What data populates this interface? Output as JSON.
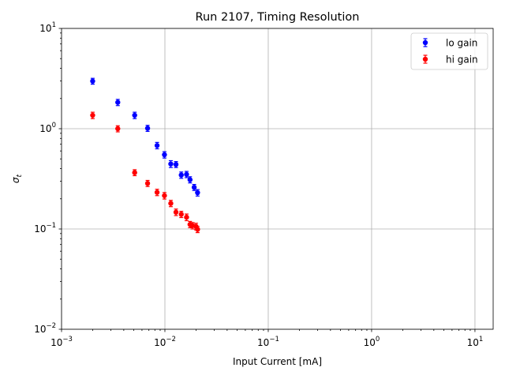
{
  "chart_data": {
    "type": "scatter",
    "title": "Run 2107, Timing Resolution",
    "xlabel": "Input Current [mA]",
    "ylabel": "σ",
    "ylabel_subscript": "t",
    "xscale": "log",
    "yscale": "log",
    "xlim": [
      0.001,
      15
    ],
    "ylim": [
      0.01,
      10
    ],
    "xticks": [
      {
        "value": 0.001,
        "base": "10",
        "exp": "−3"
      },
      {
        "value": 0.01,
        "base": "10",
        "exp": "−2"
      },
      {
        "value": 0.1,
        "base": "10",
        "exp": "−1"
      },
      {
        "value": 1,
        "base": "10",
        "exp": "0"
      },
      {
        "value": 10,
        "base": "10",
        "exp": "1"
      }
    ],
    "yticks": [
      {
        "value": 0.01,
        "base": "10",
        "exp": "−2"
      },
      {
        "value": 0.1,
        "base": "10",
        "exp": "−1"
      },
      {
        "value": 1,
        "base": "10",
        "exp": "0"
      },
      {
        "value": 10,
        "base": "10",
        "exp": "1"
      }
    ],
    "grid": true,
    "legend_position": "top-right",
    "series": [
      {
        "name": "lo gain",
        "color": "#0000ff",
        "x": [
          0.002,
          0.0035,
          0.0051,
          0.0068,
          0.0084,
          0.0099,
          0.0114,
          0.0128,
          0.0144,
          0.0162,
          0.0175,
          0.0192,
          0.0207
        ],
        "y": [
          2.98,
          1.83,
          1.36,
          1.01,
          0.68,
          0.55,
          0.445,
          0.44,
          0.345,
          0.35,
          0.31,
          0.26,
          0.23
        ],
        "err": [
          0.2,
          0.13,
          0.1,
          0.07,
          0.05,
          0.04,
          0.035,
          0.03,
          0.025,
          0.025,
          0.022,
          0.018,
          0.017
        ]
      },
      {
        "name": "hi gain",
        "color": "#ff0000",
        "x": [
          0.002,
          0.0035,
          0.0051,
          0.0068,
          0.0084,
          0.0099,
          0.0114,
          0.0128,
          0.0144,
          0.0162,
          0.0175,
          0.0185,
          0.02,
          0.0207
        ],
        "y": [
          1.36,
          1.0,
          0.365,
          0.285,
          0.232,
          0.215,
          0.18,
          0.147,
          0.14,
          0.131,
          0.111,
          0.108,
          0.106,
          0.099
        ],
        "err": [
          0.1,
          0.07,
          0.025,
          0.02,
          0.017,
          0.016,
          0.013,
          0.011,
          0.01,
          0.01,
          0.008,
          0.008,
          0.008,
          0.007
        ]
      }
    ]
  }
}
